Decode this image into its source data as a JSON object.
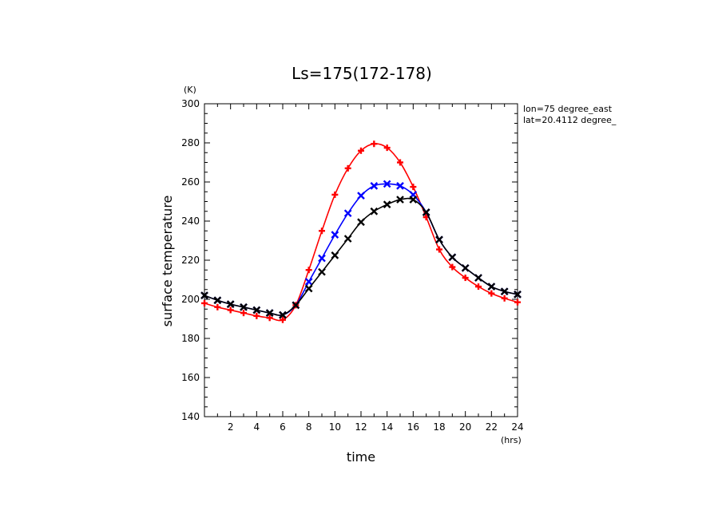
{
  "chart_data": {
    "type": "line",
    "title": "Ls=175(172-178)",
    "xlabel": "time",
    "ylabel": "surface temperature",
    "x_unit": "(hrs)",
    "y_unit": "(K)",
    "annotations": [
      "lon=75 degree_east",
      "lat=20.4112 degree_"
    ],
    "xlim": [
      0,
      24
    ],
    "ylim": [
      140,
      300
    ],
    "xticks": [
      2,
      4,
      6,
      8,
      10,
      12,
      14,
      16,
      18,
      20,
      22,
      24
    ],
    "yticks": [
      140,
      160,
      180,
      200,
      220,
      240,
      260,
      280,
      300
    ],
    "x": [
      0,
      1,
      2,
      3,
      4,
      5,
      6,
      7,
      8,
      9,
      10,
      11,
      12,
      13,
      14,
      15,
      16,
      17,
      18,
      19,
      20,
      21,
      22,
      23,
      24
    ],
    "series": [
      {
        "color": "#ff0000",
        "marker": "plus",
        "values": [
          198,
          196,
          194.5,
          193,
          191.5,
          190.5,
          189.5,
          197,
          215,
          235,
          253.5,
          267,
          276,
          279.5,
          277.5,
          270,
          257.5,
          242,
          225.5,
          216.5,
          211,
          206.5,
          203,
          200.5,
          198.5
        ]
      },
      {
        "color": "#0000ff",
        "marker": "x",
        "values": [
          202,
          199.5,
          197.5,
          196,
          194.5,
          193,
          192,
          197,
          209,
          221,
          233,
          244,
          253,
          258,
          259,
          258,
          253.5,
          244.5,
          230.5,
          221.5,
          216,
          211,
          206.5,
          204,
          202.5
        ]
      },
      {
        "color": "#000000",
        "marker": "x",
        "values": [
          202,
          199.5,
          197.5,
          196,
          194.5,
          193,
          192,
          197,
          205.5,
          214,
          222.5,
          231,
          239.5,
          245,
          248.5,
          251,
          251,
          244.5,
          230.5,
          221.5,
          216,
          211,
          206.5,
          204,
          202.5
        ]
      }
    ],
    "grid": false,
    "colors": {
      "axis": "#000000",
      "background": "#ffffff"
    }
  }
}
